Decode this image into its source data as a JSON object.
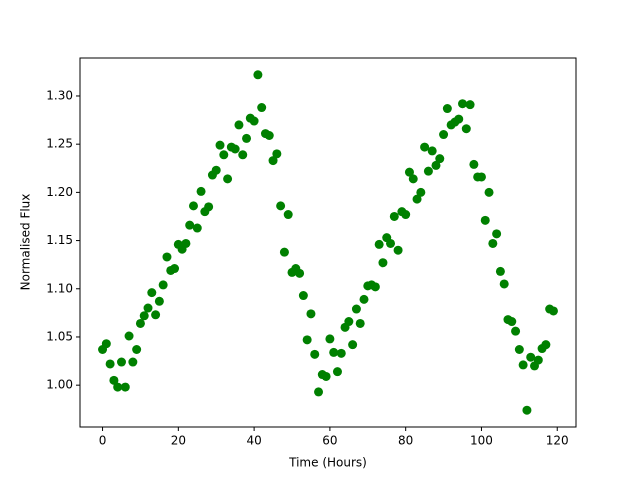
{
  "chart_data": {
    "type": "scatter",
    "xlabel": "Time (Hours)",
    "ylabel": "Normalised Flux",
    "color": "#008000",
    "x": [
      0,
      1,
      2,
      3,
      4,
      5,
      6,
      7,
      8,
      9,
      10,
      11,
      12,
      13,
      14,
      15,
      16,
      17,
      18,
      19,
      20,
      21,
      22,
      23,
      24,
      25,
      26,
      27,
      28,
      29,
      30,
      31,
      32,
      33,
      34,
      35,
      36,
      37,
      38,
      39,
      40,
      41,
      42,
      43,
      44,
      45,
      46,
      47,
      48,
      49,
      50,
      51,
      52,
      53,
      54,
      55,
      56,
      57,
      58,
      59,
      60,
      61,
      62,
      63,
      64,
      65,
      66,
      67,
      68,
      69,
      70,
      71,
      72,
      73,
      74,
      75,
      76,
      77,
      78,
      79,
      80,
      81,
      82,
      83,
      84,
      85,
      86,
      87,
      88,
      89,
      90,
      91,
      92,
      93,
      94,
      95,
      96,
      97,
      98,
      99,
      100,
      101,
      102,
      103,
      104,
      105,
      106,
      107,
      108,
      109,
      110,
      111,
      112,
      113,
      114,
      115,
      116,
      117,
      118,
      119
    ],
    "values": [
      1.037,
      1.043,
      1.022,
      1.005,
      0.998,
      1.024,
      0.998,
      1.051,
      1.024,
      1.037,
      1.064,
      1.072,
      1.08,
      1.096,
      1.073,
      1.087,
      1.104,
      1.133,
      1.119,
      1.121,
      1.146,
      1.141,
      1.147,
      1.166,
      1.186,
      1.163,
      1.201,
      1.18,
      1.185,
      1.218,
      1.223,
      1.249,
      1.239,
      1.214,
      1.247,
      1.245,
      1.27,
      1.239,
      1.256,
      1.277,
      1.274,
      1.322,
      1.288,
      1.261,
      1.259,
      1.233,
      1.24,
      1.186,
      1.138,
      1.177,
      1.117,
      1.121,
      1.116,
      1.093,
      1.047,
      1.074,
      1.032,
      0.993,
      1.011,
      1.009,
      1.048,
      1.034,
      1.014,
      1.033,
      1.06,
      1.066,
      1.042,
      1.079,
      1.064,
      1.089,
      1.103,
      1.104,
      1.102,
      1.146,
      1.127,
      1.153,
      1.147,
      1.175,
      1.14,
      1.18,
      1.177,
      1.221,
      1.214,
      1.193,
      1.2,
      1.247,
      1.222,
      1.243,
      1.228,
      1.235,
      1.26,
      1.287,
      1.27,
      1.273,
      1.276,
      1.292,
      1.266,
      1.291,
      1.229,
      1.216,
      1.216,
      1.171,
      1.2,
      1.147,
      1.157,
      1.118,
      1.105,
      1.068,
      1.066,
      1.056,
      1.037,
      1.021,
      0.974,
      1.029,
      1.02,
      1.026,
      1.038,
      1.042,
      1.079,
      1.077
    ],
    "xlim": [
      -5.95,
      124.95
    ],
    "ylim": [
      0.9566,
      1.3394
    ],
    "xticks": [
      0,
      20,
      40,
      60,
      80,
      100,
      120
    ],
    "yticks": [
      {
        "value": 1.0,
        "label": "1.00"
      },
      1.05,
      {
        "value": 1.1,
        "label": "1.10"
      },
      1.15,
      {
        "value": 1.2,
        "label": "1.20"
      },
      1.25,
      {
        "value": 1.3,
        "label": "1.30"
      }
    ]
  }
}
